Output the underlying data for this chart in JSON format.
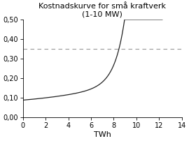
{
  "title_line1": "Kostnadskurve for små kraftverk",
  "title_line2": "(1-10 MW)",
  "xlabel": "TWh",
  "xlim": [
    0,
    14
  ],
  "ylim": [
    0.0,
    0.5
  ],
  "xticks": [
    0,
    2,
    4,
    6,
    8,
    10,
    12,
    14
  ],
  "yticks": [
    0.0,
    0.1,
    0.2,
    0.3,
    0.4,
    0.5
  ],
  "hline_y": 0.35,
  "hline_color": "#999999",
  "curve_color": "#222222",
  "background_color": "#ffffff",
  "figsize": [
    2.7,
    2.02
  ],
  "dpi": 100,
  "title_fontsize": 8.0,
  "tick_labelsize": 7,
  "xlabel_fontsize": 8
}
